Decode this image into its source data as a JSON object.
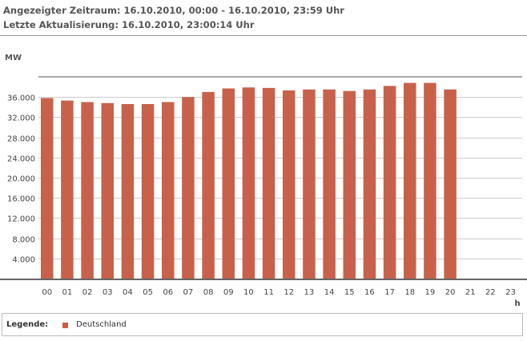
{
  "header": {
    "period_line": "Angezeigter Zeitraum: 16.10.2010, 00:00 - 16.10.2010, 23:59 Uhr",
    "update_line": "Letzte Aktualisierung: 16.10.2010, 23:00:14 Uhr"
  },
  "legend": {
    "title": "Legende:",
    "entry_label": "Deutschland",
    "entry_color": "#c8614a"
  },
  "chart_data": {
    "type": "bar",
    "title": "",
    "ylabel": "MW",
    "xlabel": "h",
    "ylim": [
      0,
      40000
    ],
    "yticks": [
      4000,
      8000,
      12000,
      16000,
      20000,
      24000,
      28000,
      32000,
      36000
    ],
    "ytick_labels": [
      "4.000",
      "8.000",
      "12.000",
      "16.000",
      "20.000",
      "24.000",
      "28.000",
      "32.000",
      "36.000"
    ],
    "categories": [
      "00",
      "01",
      "02",
      "03",
      "04",
      "05",
      "06",
      "07",
      "08",
      "09",
      "10",
      "11",
      "12",
      "13",
      "14",
      "15",
      "16",
      "17",
      "18",
      "19",
      "20",
      "21",
      "22",
      "23"
    ],
    "series": [
      {
        "name": "Deutschland",
        "color": "#c8614a",
        "values": [
          35800,
          35300,
          35000,
          34800,
          34600,
          34600,
          35000,
          36000,
          37000,
          37700,
          37900,
          37800,
          37300,
          37500,
          37500,
          37200,
          37500,
          38200,
          38800,
          38800,
          37500,
          null,
          null,
          null
        ]
      }
    ],
    "grid": true,
    "legend_position": "bottom"
  }
}
